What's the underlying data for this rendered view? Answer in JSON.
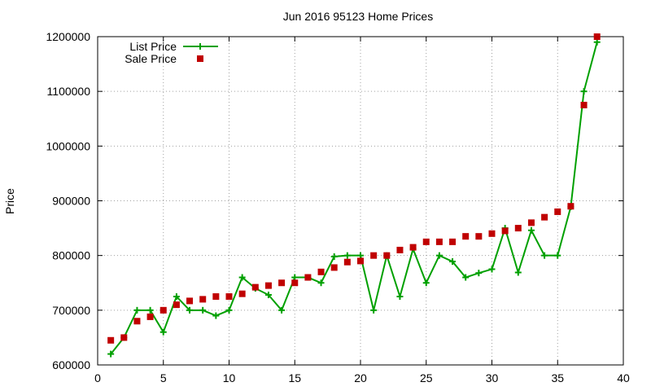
{
  "chart_data": {
    "type": "line",
    "title": "Jun 2016 95123 Home Prices",
    "xlabel": "",
    "ylabel": "Price",
    "xlim": [
      0,
      40
    ],
    "ylim": [
      600000,
      1200000
    ],
    "xticks": [
      0,
      5,
      10,
      15,
      20,
      25,
      30,
      35,
      40
    ],
    "yticks": [
      600000,
      700000,
      800000,
      900000,
      1000000,
      1100000,
      1200000
    ],
    "grid": true,
    "legend_position": "top-left",
    "series": [
      {
        "name": "List Price",
        "style": "line-with-plus-markers",
        "color": "#00a000",
        "x": [
          1,
          2,
          3,
          4,
          5,
          6,
          7,
          8,
          9,
          10,
          11,
          12,
          13,
          14,
          15,
          16,
          17,
          18,
          19,
          20,
          21,
          22,
          23,
          24,
          25,
          26,
          27,
          28,
          29,
          30,
          31,
          32,
          33,
          34,
          35,
          36,
          37,
          38
        ],
        "y": [
          620000,
          650000,
          700000,
          700000,
          660000,
          725000,
          700000,
          700000,
          690000,
          700000,
          760000,
          740000,
          728000,
          700000,
          760000,
          760000,
          750000,
          798000,
          800000,
          800000,
          700000,
          800000,
          725000,
          812000,
          750000,
          800000,
          789000,
          760000,
          768000,
          775000,
          850000,
          769000,
          846000,
          800000,
          800000,
          889000,
          1100000,
          1190000
        ]
      },
      {
        "name": "Sale Price",
        "style": "square-markers",
        "color": "#c00000",
        "x": [
          1,
          2,
          3,
          4,
          5,
          6,
          7,
          8,
          9,
          10,
          11,
          12,
          13,
          14,
          15,
          16,
          17,
          18,
          19,
          20,
          21,
          22,
          23,
          24,
          25,
          26,
          27,
          28,
          29,
          30,
          31,
          32,
          33,
          34,
          35,
          36,
          37,
          38
        ],
        "y": [
          645000,
          650000,
          680000,
          688000,
          700000,
          710000,
          717000,
          720000,
          725000,
          725000,
          730000,
          742000,
          745000,
          750000,
          750000,
          760000,
          770000,
          778000,
          788000,
          790000,
          800000,
          800000,
          810000,
          815000,
          825000,
          825000,
          825000,
          835000,
          835000,
          840000,
          845000,
          850000,
          860000,
          870000,
          880000,
          890000,
          1075000,
          1200000
        ]
      }
    ]
  }
}
